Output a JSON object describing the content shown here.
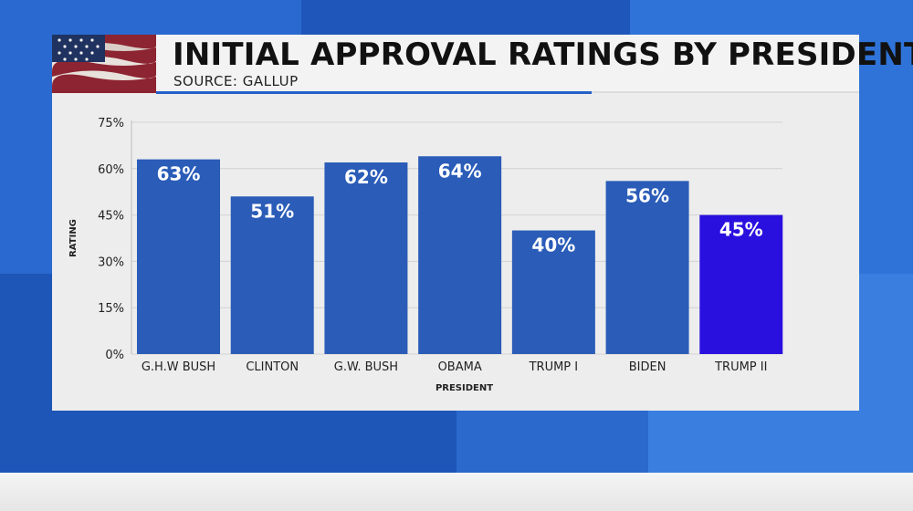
{
  "header": {
    "title": "INITIAL APPROVAL RATINGS BY PRESIDENT",
    "subtitle": "SOURCE: GALLUP"
  },
  "colors": {
    "bar": "#2a5cb8",
    "highlight_bar": "#2a10df",
    "background": "#1f5fc4",
    "panel": "#ededed"
  },
  "chart_data": {
    "type": "bar",
    "title": "INITIAL APPROVAL RATINGS BY PRESIDENT",
    "xlabel": "PRESIDENT",
    "ylabel": "RATING",
    "categories": [
      "G.H.W BUSH",
      "CLINTON",
      "G.W. BUSH",
      "OBAMA",
      "TRUMP I",
      "BIDEN",
      "TRUMP II"
    ],
    "values": [
      63,
      51,
      62,
      64,
      40,
      56,
      45
    ],
    "value_labels": [
      "63%",
      "51%",
      "62%",
      "64%",
      "40%",
      "56%",
      "45%"
    ],
    "highlight_index": 6,
    "ylim": [
      0,
      75
    ],
    "yticks": [
      0,
      15,
      30,
      45,
      60,
      75
    ],
    "ytick_labels": [
      "0%",
      "15%",
      "30%",
      "45%",
      "60%",
      "75%"
    ],
    "grid": true
  }
}
